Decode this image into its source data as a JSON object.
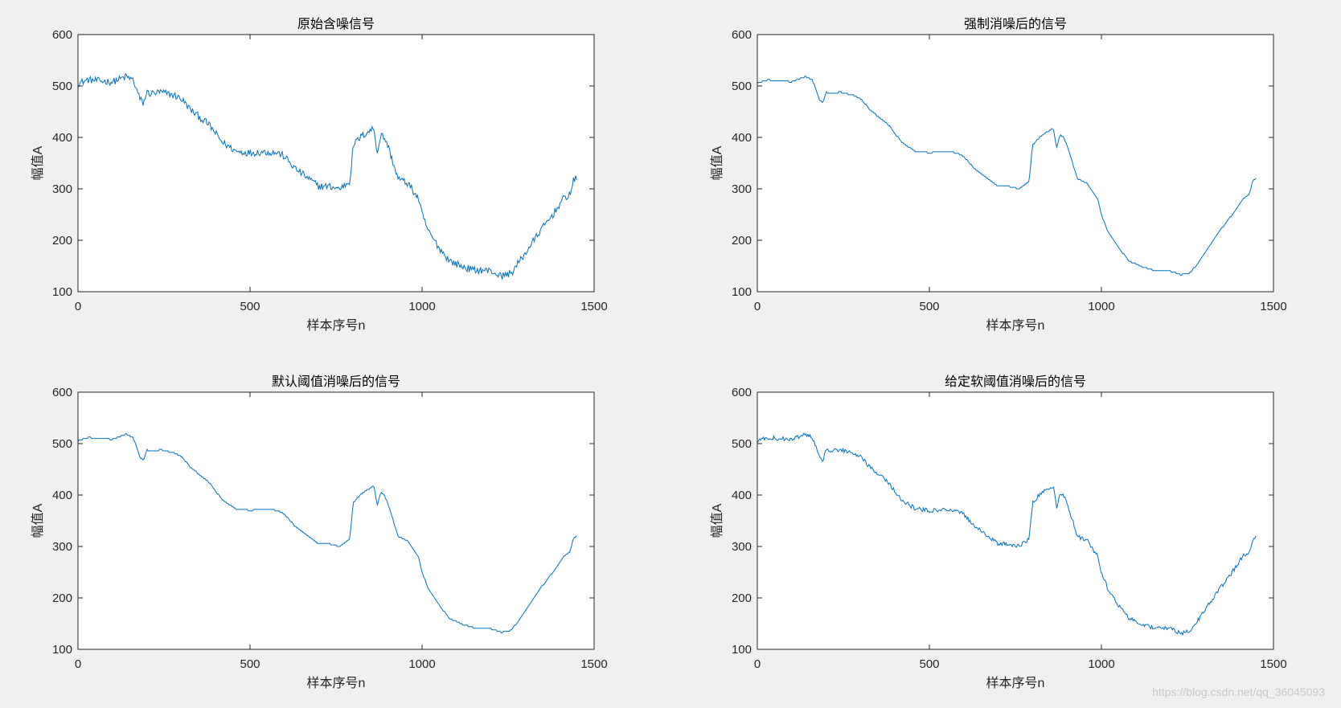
{
  "figure": {
    "background": "#f0f0f0"
  },
  "watermark": "https://blog.csdn.net/qq_36045093",
  "chart_data": [
    {
      "type": "line",
      "title": "原始含噪信号",
      "xlabel": "样本序号n",
      "ylabel": "幅值A",
      "xlim": [
        0,
        1500
      ],
      "ylim": [
        100,
        600
      ],
      "xticks": [
        0,
        500,
        1000,
        1500
      ],
      "yticks": [
        100,
        200,
        300,
        400,
        500,
        600
      ],
      "grid": false,
      "color": "#0072bd",
      "noise": 7,
      "series": [
        {
          "x": [
            0,
            30,
            60,
            100,
            140,
            160,
            180,
            190,
            200,
            210,
            240,
            280,
            300,
            330,
            380,
            420,
            460,
            500,
            540,
            580,
            600,
            630,
            660,
            700,
            730,
            760,
            790,
            800,
            820,
            840,
            860,
            870,
            880,
            890,
            900,
            930,
            960,
            990,
            1000,
            1020,
            1050,
            1080,
            1120,
            1150,
            1180,
            1200,
            1230,
            1260,
            1300,
            1340,
            1380,
            1410,
            1430,
            1440,
            1450
          ],
          "y": [
            505,
            512,
            510,
            508,
            518,
            512,
            475,
            466,
            488,
            485,
            488,
            482,
            475,
            452,
            425,
            390,
            373,
            370,
            372,
            370,
            363,
            340,
            325,
            305,
            305,
            300,
            315,
            385,
            400,
            410,
            418,
            370,
            405,
            400,
            385,
            320,
            310,
            280,
            250,
            215,
            185,
            160,
            148,
            142,
            142,
            140,
            130,
            137,
            175,
            215,
            250,
            280,
            290,
            315,
            322
          ]
        }
      ]
    },
    {
      "type": "line",
      "title": "强制消噪后的信号",
      "xlabel": "样本序号n",
      "ylabel": "幅值A",
      "xlim": [
        0,
        1500
      ],
      "ylim": [
        100,
        600
      ],
      "xticks": [
        0,
        500,
        1000,
        1500
      ],
      "yticks": [
        100,
        200,
        300,
        400,
        500,
        600
      ],
      "grid": false,
      "color": "#0072bd",
      "noise": 0,
      "series": [
        {
          "x": [
            0,
            30,
            60,
            100,
            140,
            160,
            180,
            190,
            200,
            210,
            240,
            280,
            300,
            330,
            380,
            420,
            460,
            500,
            540,
            580,
            600,
            630,
            660,
            700,
            730,
            760,
            790,
            800,
            820,
            840,
            860,
            870,
            880,
            890,
            900,
            930,
            960,
            990,
            1000,
            1020,
            1050,
            1080,
            1120,
            1150,
            1180,
            1200,
            1230,
            1260,
            1300,
            1340,
            1380,
            1410,
            1430,
            1440,
            1450
          ],
          "y": [
            505,
            512,
            510,
            508,
            518,
            512,
            475,
            466,
            488,
            485,
            488,
            482,
            475,
            452,
            425,
            390,
            373,
            370,
            372,
            370,
            363,
            340,
            325,
            305,
            305,
            300,
            315,
            385,
            400,
            410,
            418,
            380,
            405,
            400,
            385,
            320,
            310,
            280,
            250,
            215,
            185,
            160,
            148,
            142,
            142,
            140,
            133,
            137,
            175,
            215,
            250,
            280,
            290,
            315,
            322
          ]
        }
      ]
    },
    {
      "type": "line",
      "title": "默认阈值消噪后的信号",
      "xlabel": "样本序号n",
      "ylabel": "幅值A",
      "xlim": [
        0,
        1500
      ],
      "ylim": [
        100,
        600
      ],
      "xticks": [
        0,
        500,
        1000,
        1500
      ],
      "yticks": [
        100,
        200,
        300,
        400,
        500,
        600
      ],
      "grid": false,
      "color": "#0072bd",
      "noise": 0,
      "series": [
        {
          "x": [
            0,
            30,
            60,
            100,
            140,
            160,
            180,
            190,
            200,
            210,
            240,
            280,
            300,
            330,
            380,
            420,
            460,
            500,
            540,
            580,
            600,
            630,
            660,
            700,
            730,
            760,
            790,
            800,
            820,
            840,
            860,
            870,
            880,
            890,
            900,
            930,
            960,
            990,
            1000,
            1020,
            1050,
            1080,
            1120,
            1150,
            1180,
            1200,
            1230,
            1260,
            1300,
            1340,
            1380,
            1410,
            1430,
            1440,
            1450
          ],
          "y": [
            505,
            512,
            510,
            508,
            518,
            512,
            475,
            466,
            488,
            485,
            488,
            482,
            475,
            452,
            425,
            390,
            373,
            370,
            372,
            370,
            363,
            340,
            325,
            305,
            305,
            300,
            315,
            385,
            400,
            410,
            418,
            380,
            405,
            400,
            385,
            320,
            310,
            280,
            250,
            215,
            185,
            160,
            148,
            142,
            142,
            140,
            133,
            137,
            175,
            215,
            250,
            280,
            290,
            315,
            322
          ]
        }
      ]
    },
    {
      "type": "line",
      "title": "给定软阈值消噪后的信号",
      "xlabel": "样本序号n",
      "ylabel": "幅值A",
      "xlim": [
        0,
        1500
      ],
      "ylim": [
        100,
        600
      ],
      "xticks": [
        0,
        500,
        1000,
        1500
      ],
      "yticks": [
        100,
        200,
        300,
        400,
        500,
        600
      ],
      "grid": false,
      "color": "#0072bd",
      "noise": 4,
      "series": [
        {
          "x": [
            0,
            30,
            60,
            100,
            140,
            160,
            180,
            190,
            200,
            210,
            240,
            280,
            300,
            330,
            380,
            420,
            460,
            500,
            540,
            580,
            600,
            630,
            660,
            700,
            730,
            760,
            790,
            800,
            820,
            840,
            860,
            870,
            880,
            890,
            900,
            930,
            960,
            990,
            1000,
            1020,
            1050,
            1080,
            1120,
            1150,
            1180,
            1200,
            1230,
            1260,
            1300,
            1340,
            1380,
            1410,
            1430,
            1440,
            1450
          ],
          "y": [
            505,
            512,
            510,
            508,
            518,
            512,
            475,
            466,
            488,
            485,
            488,
            482,
            475,
            452,
            425,
            390,
            373,
            370,
            372,
            370,
            363,
            340,
            325,
            305,
            305,
            300,
            315,
            385,
            400,
            410,
            418,
            375,
            405,
            400,
            385,
            320,
            310,
            280,
            250,
            215,
            185,
            160,
            148,
            142,
            142,
            140,
            131,
            137,
            175,
            215,
            250,
            280,
            290,
            315,
            322
          ]
        }
      ]
    }
  ]
}
